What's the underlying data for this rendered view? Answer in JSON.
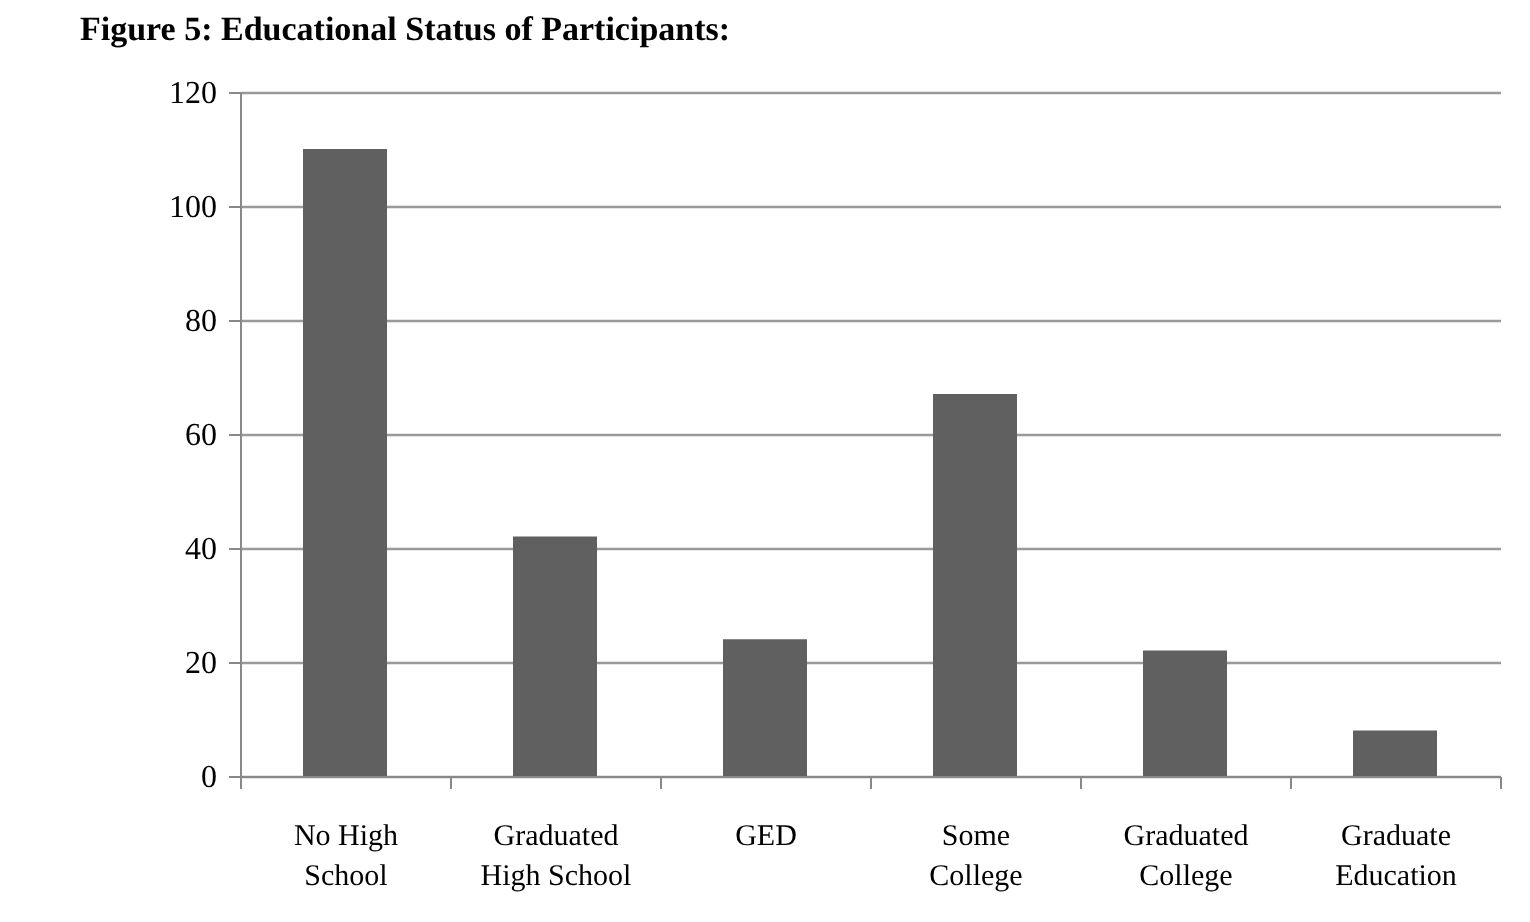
{
  "chart_data": {
    "type": "bar",
    "title": "Figure 5: Educational Status of Participants:",
    "categories": [
      "No High School",
      "Graduated High School",
      "GED",
      "Some College",
      "Graduated College",
      "Graduate Education"
    ],
    "values": [
      110,
      42,
      24,
      67,
      22,
      8
    ],
    "color": "#606060",
    "ylim": [
      0,
      120
    ],
    "yticks": [
      0,
      20,
      40,
      60,
      80,
      100,
      120
    ],
    "grid": "y"
  }
}
